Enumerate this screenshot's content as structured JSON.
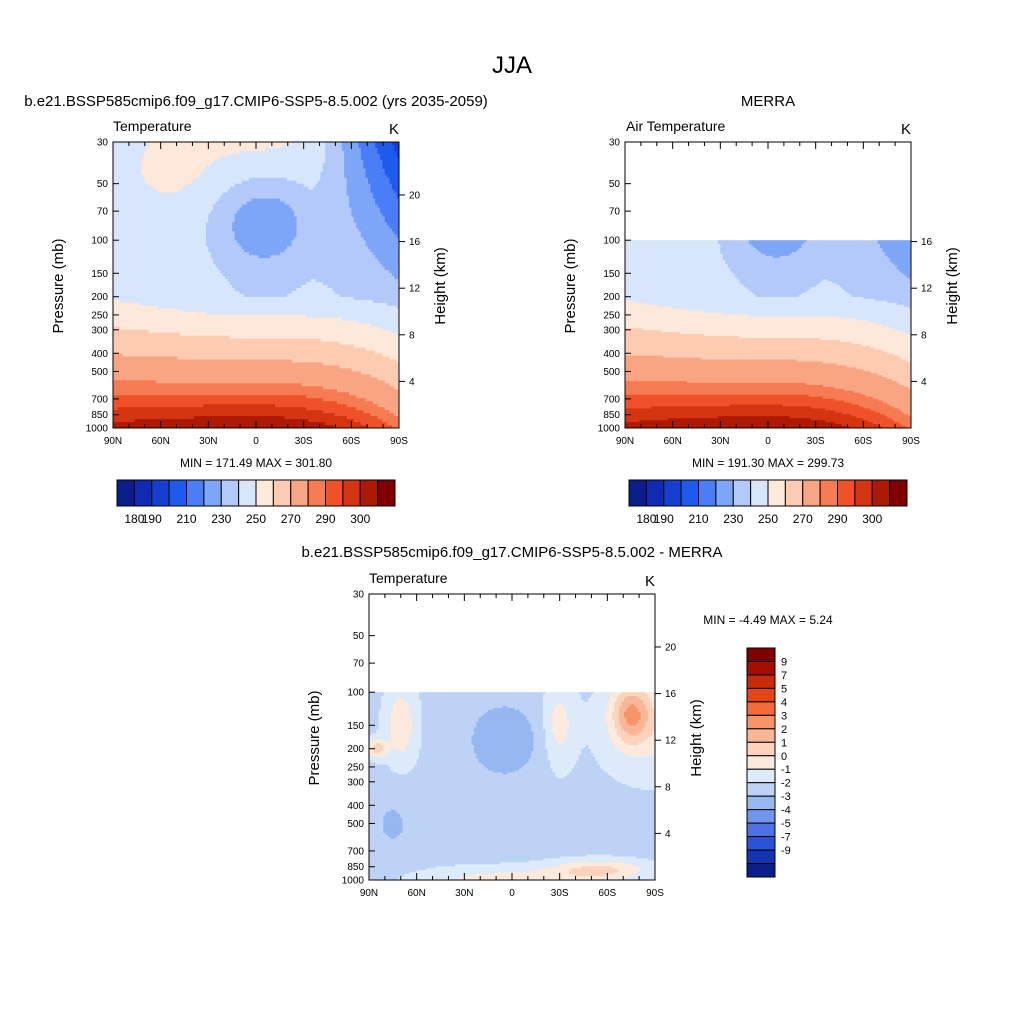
{
  "page": {
    "title": "JJA"
  },
  "colors": {
    "temp": [
      "#0a1e8c",
      "#0f2ab4",
      "#1440d2",
      "#1e5aee",
      "#4a7ef6",
      "#7ea6f8",
      "#b2c9fa",
      "#d8e6fb",
      "#fde8da",
      "#fccbb0",
      "#f9a482",
      "#f67b52",
      "#ef5128",
      "#d63410",
      "#ac1a06",
      "#800000"
    ],
    "diff": [
      "#800000",
      "#a40e00",
      "#c82a0a",
      "#e4461a",
      "#f46a3a",
      "#f79468",
      "#f9b696",
      "#fbd2bc",
      "#fdeadc",
      "#ddeaf9",
      "#bdd3f6",
      "#97b7f1",
      "#6f95ec",
      "#4a72e4",
      "#2a52d6",
      "#1434b4",
      "#0a1e8c"
    ]
  },
  "panels": {
    "model": {
      "title": "b.e21.BSSP585cmip6.f09_g17.CMIP6-SSP5-8.5.002 (yrs 2035-2059)",
      "left_label": "Temperature",
      "right_label": "K",
      "stats": "MIN = 171.49  MAX = 301.80",
      "colorbar_labels": [
        "180",
        "190",
        "210",
        "230",
        "250",
        "270",
        "290",
        "300"
      ]
    },
    "obs": {
      "title": "MERRA",
      "left_label": "Air Temperature",
      "right_label": "K",
      "stats": "MIN = 191.30  MAX = 299.73",
      "colorbar_labels": [
        "180",
        "190",
        "210",
        "230",
        "250",
        "270",
        "290",
        "300"
      ]
    },
    "diff": {
      "title": "b.e21.BSSP585cmip6.f09_g17.CMIP6-SSP5-8.5.002 - MERRA",
      "left_label": "Temperature",
      "right_label": "K",
      "stats": "MIN =  -4.49  MAX =   5.24",
      "colorbar_labels": [
        "9",
        "7",
        "5",
        "4",
        "3",
        "2",
        "1",
        "0",
        "-1",
        "-2",
        "-3",
        "-4",
        "-5",
        "-7",
        "-9"
      ]
    }
  },
  "chart_data": [
    {
      "type": "heatmap",
      "title": "b.e21.BSSP585cmip6.f09_g17.CMIP6-SSP5-8.5.002 (yrs 2035-2059)",
      "subtitle": "Temperature",
      "units": "K",
      "xlabel": "",
      "ylabel": "Pressure (mb)",
      "y2label": "Height (km)",
      "x_ticks": [
        "90N",
        "60N",
        "30N",
        "0",
        "30S",
        "60S",
        "90S"
      ],
      "y_ticks": [
        "30",
        "50",
        "70",
        "100",
        "150",
        "200",
        "250",
        "300",
        "400",
        "500",
        "700",
        "850",
        "1000"
      ],
      "y2_ticks": [
        "20",
        "16",
        "12",
        "8",
        "4"
      ],
      "xlim": [
        90,
        -90
      ],
      "ylim": [
        1000,
        30
      ],
      "data_top_pressure": 30,
      "min": 171.49,
      "max": 301.8,
      "levels": [
        180,
        190,
        200,
        210,
        220,
        230,
        240,
        250,
        260,
        270,
        280,
        285,
        290,
        295,
        300
      ],
      "colorbar_labels": [
        "180",
        "190",
        "210",
        "230",
        "250",
        "270",
        "290",
        "300"
      ]
    },
    {
      "type": "heatmap",
      "title": "MERRA",
      "subtitle": "Air Temperature",
      "units": "K",
      "xlabel": "",
      "ylabel": "Pressure (mb)",
      "y2label": "Height (km)",
      "x_ticks": [
        "90N",
        "60N",
        "30N",
        "0",
        "30S",
        "60S",
        "90S"
      ],
      "y_ticks": [
        "30",
        "50",
        "70",
        "100",
        "150",
        "200",
        "250",
        "300",
        "400",
        "500",
        "700",
        "850",
        "1000"
      ],
      "y2_ticks": [
        "16",
        "12",
        "8",
        "4"
      ],
      "xlim": [
        90,
        -90
      ],
      "ylim": [
        1000,
        30
      ],
      "data_top_pressure": 100,
      "min": 191.3,
      "max": 299.73,
      "levels": [
        180,
        190,
        200,
        210,
        220,
        230,
        240,
        250,
        260,
        270,
        280,
        285,
        290,
        295,
        300
      ],
      "colorbar_labels": [
        "180",
        "190",
        "210",
        "230",
        "250",
        "270",
        "290",
        "300"
      ]
    },
    {
      "type": "heatmap",
      "title": "b.e21.BSSP585cmip6.f09_g17.CMIP6-SSP5-8.5.002 - MERRA",
      "subtitle": "Temperature",
      "units": "K",
      "xlabel": "",
      "ylabel": "Pressure (mb)",
      "y2label": "Height (km)",
      "x_ticks": [
        "90N",
        "60N",
        "30N",
        "0",
        "30S",
        "60S",
        "90S"
      ],
      "y_ticks": [
        "30",
        "50",
        "70",
        "100",
        "150",
        "200",
        "250",
        "300",
        "400",
        "500",
        "700",
        "850",
        "1000"
      ],
      "y2_ticks": [
        "20",
        "16",
        "12",
        "8",
        "4"
      ],
      "xlim": [
        90,
        -90
      ],
      "ylim": [
        1000,
        30
      ],
      "data_top_pressure": 100,
      "min": -4.49,
      "max": 5.24,
      "levels": [
        -9,
        -7,
        -5,
        -4,
        -3,
        -2,
        -1,
        0,
        1,
        2,
        3,
        4,
        5,
        7,
        9
      ],
      "colorbar_labels": [
        "9",
        "7",
        "5",
        "4",
        "3",
        "2",
        "1",
        "0",
        "-1",
        "-2",
        "-3",
        "-4",
        "-5",
        "-7",
        "-9"
      ]
    }
  ]
}
